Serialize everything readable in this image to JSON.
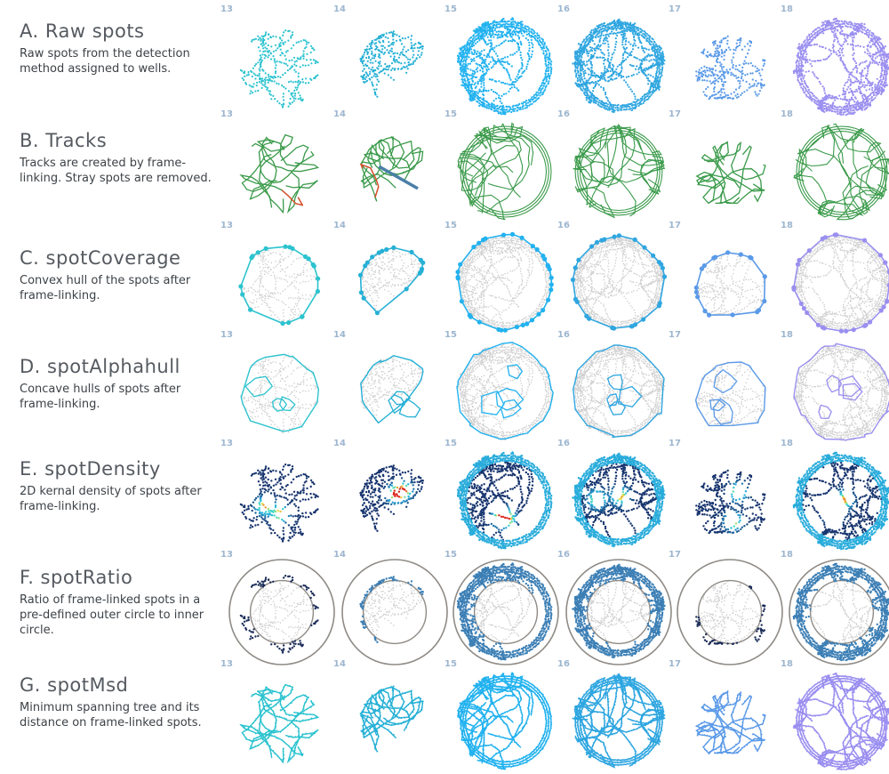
{
  "wells": [
    "13",
    "14",
    "15",
    "16",
    "17",
    "18"
  ],
  "well_colors": [
    "#2cc3cf",
    "#26b0d6",
    "#22b2ef",
    "#2fa6e0",
    "#5b9ae8",
    "#9a8ff0"
  ],
  "colors": {
    "track_green": "#3a9a4a",
    "track_red": "#e04a2a",
    "track_blue": "#4a7fa8",
    "spot_gray": "#cfcfcf",
    "ring_gray": "#8f8b86",
    "ratio_dark": "#1e2f5a",
    "ratio_blue": "#3c7fb5",
    "density_dark": "#17346e"
  },
  "rows": [
    {
      "id": "raw",
      "title": "A. Raw spots",
      "description": "Raw spots from the detection method assigned to wells."
    },
    {
      "id": "tracks",
      "title": "B. Tracks",
      "description": "Tracks are created by frame-linking. Stray spots are removed."
    },
    {
      "id": "coverage",
      "title": "C. spotCoverage",
      "description": "Convex hull of the spots after frame-linking."
    },
    {
      "id": "alphahull",
      "title": "D. spotAlphahull",
      "description": "Concave hulls of spots after frame-linking."
    },
    {
      "id": "density",
      "title": "E. spotDensity",
      "description": "2D kernal density of spots after frame-linking."
    },
    {
      "id": "ratio",
      "title": "F. spotRatio",
      "description": "Ratio of frame-linked spots in a pre-defined outer circle to inner circle."
    },
    {
      "id": "msd",
      "title": "G. spotMsd",
      "description": "Minimum spanning tree and its distance on frame-linked spots."
    }
  ]
}
